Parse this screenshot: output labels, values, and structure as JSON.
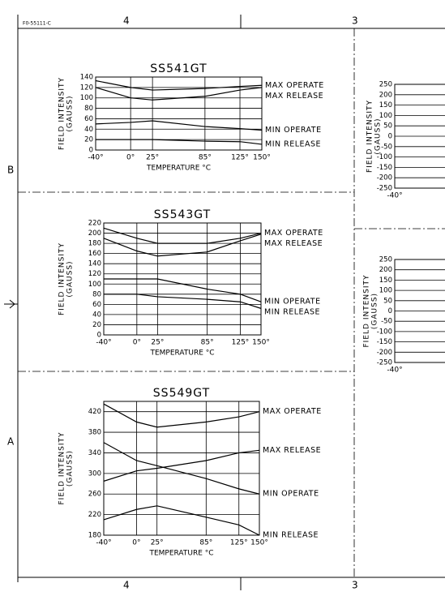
{
  "frame": {
    "drawing_number": "F0-55111-C",
    "zones_top": [
      "4",
      "3"
    ],
    "zones_bottom": [
      "4",
      "3"
    ],
    "zones_left": [
      "B",
      "A"
    ]
  },
  "chart_data": [
    {
      "type": "line",
      "title": "SS541GT",
      "y_label": "FIELD INTENSITY",
      "y_label_unit": "(GAUSS)",
      "x_label": "TEMPERATURE °C",
      "x": [
        -40,
        0,
        25,
        85,
        125,
        150
      ],
      "xlim": [
        -40,
        150
      ],
      "xticks": [
        {
          "value": -40,
          "label": "-40°"
        },
        {
          "value": 0,
          "label": "0°"
        },
        {
          "value": 25,
          "label": "25°"
        },
        {
          "value": 85,
          "label": "85°"
        },
        {
          "value": 125,
          "label": "125°"
        },
        {
          "value": 150,
          "label": "150°"
        }
      ],
      "ylim": [
        0,
        140
      ],
      "yticks": [
        0,
        20,
        40,
        60,
        80,
        100,
        120,
        140
      ],
      "grid": true,
      "series": [
        {
          "name": "MAX OPERATE",
          "color": "#000000",
          "values": [
            133,
            120,
            115,
            118,
            122,
            124
          ]
        },
        {
          "name": "MAX RELEASE",
          "color": "#000000",
          "values": [
            120,
            100,
            96,
            103,
            115,
            120
          ]
        },
        {
          "name": "MIN OPERATE",
          "color": "#000000",
          "values": [
            50,
            53,
            56,
            45,
            41,
            38
          ]
        },
        {
          "name": "MIN RELEASE",
          "color": "#000000",
          "values": [
            20,
            20,
            20,
            17,
            16,
            11
          ]
        }
      ]
    },
    {
      "type": "line",
      "title": "SS543GT",
      "y_label": "FIELD INTENSITY",
      "y_label_unit": "(GAUSS)",
      "x_label": "TEMPERATURE °C",
      "x": [
        -40,
        0,
        25,
        85,
        125,
        150
      ],
      "xlim": [
        -40,
        150
      ],
      "xticks": [
        {
          "value": -40,
          "label": "-40°"
        },
        {
          "value": 0,
          "label": "0°"
        },
        {
          "value": 25,
          "label": "25°"
        },
        {
          "value": 85,
          "label": "85°"
        },
        {
          "value": 125,
          "label": "125°"
        },
        {
          "value": 150,
          "label": "150°"
        }
      ],
      "ylim": [
        0,
        220
      ],
      "yticks": [
        0,
        20,
        40,
        60,
        80,
        100,
        120,
        140,
        160,
        180,
        200,
        220
      ],
      "grid": true,
      "series": [
        {
          "name": "MAX OPERATE",
          "color": "#000000",
          "values": [
            210,
            190,
            180,
            180,
            190,
            200
          ]
        },
        {
          "name": "MAX RELEASE",
          "color": "#000000",
          "values": [
            190,
            165,
            155,
            163,
            185,
            198
          ]
        },
        {
          "name": "MIN OPERATE",
          "color": "#000000",
          "values": [
            110,
            110,
            110,
            90,
            80,
            65
          ]
        },
        {
          "name": "MIN RELEASE",
          "color": "#000000",
          "values": [
            80,
            80,
            75,
            70,
            65,
            52
          ]
        }
      ]
    },
    {
      "type": "line",
      "title": "SS549GT",
      "y_label": "FIELD INTENSITY",
      "y_label_unit": "(GAUSS)",
      "x_label": "TEMPERATURE °C",
      "x": [
        -40,
        0,
        25,
        85,
        125,
        150
      ],
      "xlim": [
        -40,
        150
      ],
      "xticks": [
        {
          "value": -40,
          "label": "-40°"
        },
        {
          "value": 0,
          "label": "0°"
        },
        {
          "value": 25,
          "label": "25°"
        },
        {
          "value": 85,
          "label": "85°"
        },
        {
          "value": 125,
          "label": "125°"
        },
        {
          "value": 150,
          "label": "150°"
        }
      ],
      "ylim": [
        180,
        440
      ],
      "yticks": [
        180,
        220,
        260,
        300,
        340,
        380,
        420
      ],
      "grid": true,
      "series": [
        {
          "name": "MAX OPERATE",
          "color": "#000000",
          "values": [
            435,
            400,
            390,
            400,
            410,
            420
          ]
        },
        {
          "name": "MAX RELEASE",
          "color": "#000000",
          "values": [
            285,
            305,
            310,
            325,
            340,
            345
          ]
        },
        {
          "name": "MIN OPERATE",
          "color": "#000000",
          "values": [
            360,
            325,
            315,
            290,
            270,
            260
          ]
        },
        {
          "name": "MIN RELEASE",
          "color": "#000000",
          "values": [
            210,
            230,
            237,
            215,
            200,
            180
          ]
        }
      ]
    },
    {
      "type": "line",
      "y_label": "FIELD INTENSITY",
      "y_label_unit": "(GAUSS)",
      "xlim": [
        -40,
        150
      ],
      "xticks": [
        {
          "value": -40,
          "label": "-40°"
        }
      ],
      "ylim": [
        -250,
        250
      ],
      "yticks": [
        -250,
        -200,
        -150,
        -100,
        -50,
        0,
        50,
        100,
        150,
        200,
        250
      ],
      "grid": true,
      "series": []
    },
    {
      "type": "line",
      "y_label": "FIELD INTENSITY",
      "y_label_unit": "(GAUSS)",
      "xlim": [
        -40,
        150
      ],
      "xticks": [
        {
          "value": -40,
          "label": "-40°"
        }
      ],
      "ylim": [
        -250,
        250
      ],
      "yticks": [
        -250,
        -200,
        -150,
        -100,
        -50,
        0,
        50,
        100,
        150,
        200,
        250
      ],
      "grid": true,
      "series": []
    }
  ]
}
